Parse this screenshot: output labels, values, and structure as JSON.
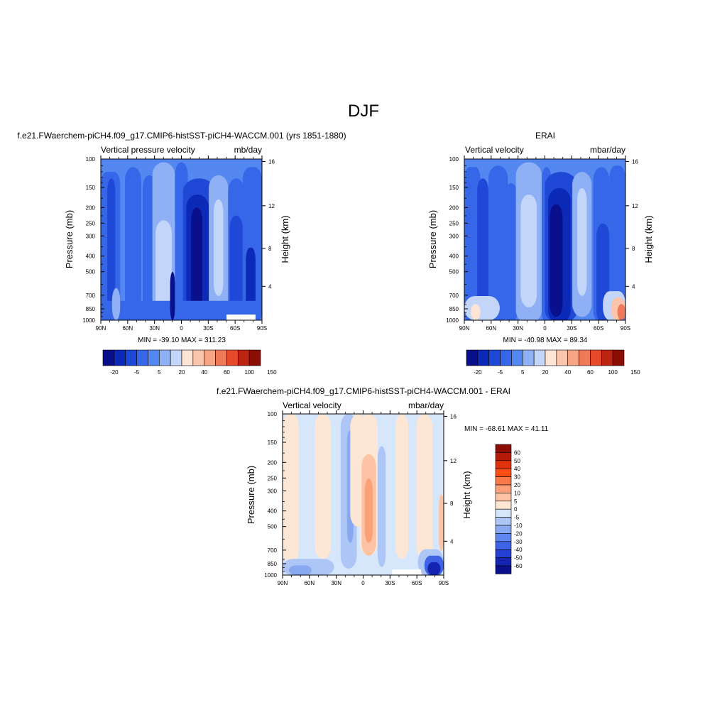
{
  "figure": {
    "title": "DJF"
  },
  "chart_data": [
    {
      "type": "heatmap",
      "panel_title": "f.e21.FWaerchem-piCH4.f09_g17.CMIP6-histSST-piCH4-WACCM.001 (yrs 1851-1880)",
      "left_string": "Vertical pressure velocity",
      "right_string": "mb/day",
      "xlabel": "",
      "ylabel": "Pressure (mb)",
      "ylabel_right": "Height (km)",
      "x_ticks": [
        "90N",
        "60N",
        "30N",
        "0",
        "30S",
        "60S",
        "90S"
      ],
      "y_ticks": [
        "100",
        "150",
        "200",
        "250",
        "300",
        "400",
        "500",
        "700",
        "850",
        "1000"
      ],
      "y2_ticks": [
        "16",
        "12",
        "8",
        "4"
      ],
      "stats": "MIN = -39.10  MAX = 311.23",
      "colorbar_orientation": "horizontal",
      "colorbar_labels": [
        "-20",
        "-5",
        "5",
        "20",
        "40",
        "60",
        "100",
        "150"
      ],
      "colors": [
        "#0a0f8c",
        "#0c2ab8",
        "#1f48d6",
        "#3567e8",
        "#5487ef",
        "#8fb0f4",
        "#c3d6fa",
        "#fde4d4",
        "#fbc5ad",
        "#f6a585",
        "#ef7a5a",
        "#e44a2a",
        "#bd2512",
        "#8a0d06"
      ],
      "min": -39.1,
      "max": 311.23
    },
    {
      "type": "heatmap",
      "panel_title": "ERAI",
      "left_string": "Vertical velocity",
      "right_string": "mbar/day",
      "xlabel": "",
      "ylabel": "Pressure (mb)",
      "ylabel_right": "Height (km)",
      "x_ticks": [
        "90N",
        "60N",
        "30N",
        "0",
        "30S",
        "60S",
        "90S"
      ],
      "y_ticks": [
        "100",
        "150",
        "200",
        "250",
        "300",
        "400",
        "500",
        "700",
        "850",
        "1000"
      ],
      "y2_ticks": [
        "16",
        "12",
        "8",
        "4"
      ],
      "stats": "MIN = -40.98  MAX =  89.34",
      "colorbar_orientation": "horizontal",
      "colorbar_labels": [
        "-20",
        "-5",
        "5",
        "20",
        "40",
        "60",
        "100",
        "150"
      ],
      "colors": [
        "#0a0f8c",
        "#0c2ab8",
        "#1f48d6",
        "#3567e8",
        "#5487ef",
        "#8fb0f4",
        "#c3d6fa",
        "#fde4d4",
        "#fbc5ad",
        "#f6a585",
        "#ef7a5a",
        "#e44a2a",
        "#bd2512",
        "#8a0d06"
      ],
      "min": -40.98,
      "max": 89.34
    },
    {
      "type": "heatmap",
      "panel_title": "f.e21.FWaerchem-piCH4.f09_g17.CMIP6-histSST-piCH4-WACCM.001 - ERAI",
      "left_string": "Vertical velocity",
      "right_string": "mbar/day",
      "xlabel": "",
      "ylabel": "Pressure (mb)",
      "ylabel_right": "Height (km)",
      "x_ticks": [
        "90N",
        "60N",
        "30N",
        "0",
        "30S",
        "60S",
        "90S"
      ],
      "y_ticks": [
        "100",
        "150",
        "200",
        "250",
        "300",
        "400",
        "500",
        "700",
        "850",
        "1000"
      ],
      "y2_ticks": [
        "16",
        "12",
        "8",
        "4"
      ],
      "stats": "MIN = -68.61  MAX =  41.11",
      "colorbar_orientation": "vertical",
      "colorbar_labels": [
        "60",
        "50",
        "40",
        "30",
        "20",
        "10",
        "5",
        "0",
        "-5",
        "-10",
        "-20",
        "-30",
        "-40",
        "-50",
        "-60"
      ],
      "colors": [
        "#8a0d06",
        "#b51a08",
        "#e0320c",
        "#fb4d14",
        "#f97a48",
        "#fba078",
        "#fcc3a4",
        "#fde6d4",
        "#d6e6fb",
        "#adc6f6",
        "#88a8f2",
        "#5f86ee",
        "#3f63e6",
        "#2440d3",
        "#1424b0",
        "#0a0f8c"
      ],
      "min": -68.61,
      "max": 41.11
    }
  ]
}
